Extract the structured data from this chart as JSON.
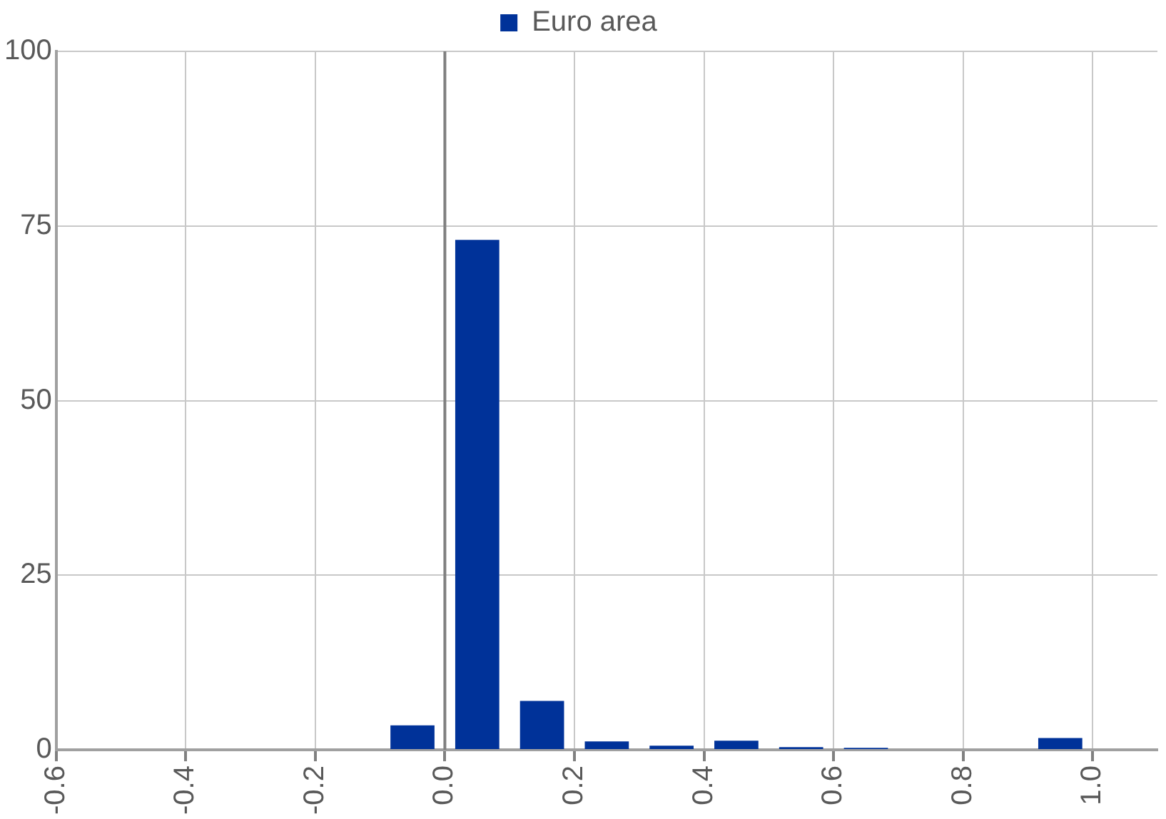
{
  "chart_data": {
    "type": "histogram",
    "bins": [
      -0.1,
      0.0,
      0.1,
      0.2,
      0.3,
      0.4,
      0.5,
      0.6,
      0.7,
      0.8,
      0.9,
      1.0
    ],
    "series": [
      {
        "name": "Euro area",
        "color": "#003299",
        "values": [
          3.5,
          73,
          7,
          1.2,
          0.6,
          1.3,
          0.4,
          0.3,
          0,
          0,
          1.7
        ]
      }
    ],
    "xlim": [
      -0.6,
      1.1
    ],
    "xticks": [
      {
        "value": -0.6,
        "label": "-0.6"
      },
      {
        "value": -0.4,
        "label": "-0.4"
      },
      {
        "value": -0.2,
        "label": "-0.2"
      },
      {
        "value": 0,
        "label": "0.0"
      },
      {
        "value": 0.2,
        "label": "0.2"
      },
      {
        "value": 0.4,
        "label": "0.4"
      },
      {
        "value": 0.6,
        "label": "0.6"
      },
      {
        "value": 0.8,
        "label": "0.8"
      },
      {
        "value": 1.0,
        "label": "1.0"
      }
    ],
    "ylim": [
      0,
      100
    ],
    "yticks": [
      0,
      25,
      50,
      75,
      100
    ],
    "ref_lines": [
      {
        "axis": "x",
        "value": 0,
        "color": "#808080"
      }
    ],
    "grid": true,
    "legend": "top"
  }
}
